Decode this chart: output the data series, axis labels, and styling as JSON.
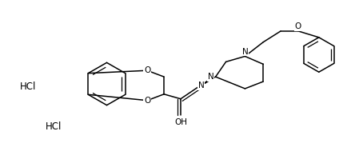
{
  "background_color": "#ffffff",
  "figsize": [
    4.29,
    2.09
  ],
  "dpi": 100,
  "lw": 1.1,
  "lw_inner": 0.9,
  "fontsize": 7.5,
  "hcl1": [
    0.055,
    0.52
  ],
  "hcl2": [
    0.13,
    0.76
  ]
}
